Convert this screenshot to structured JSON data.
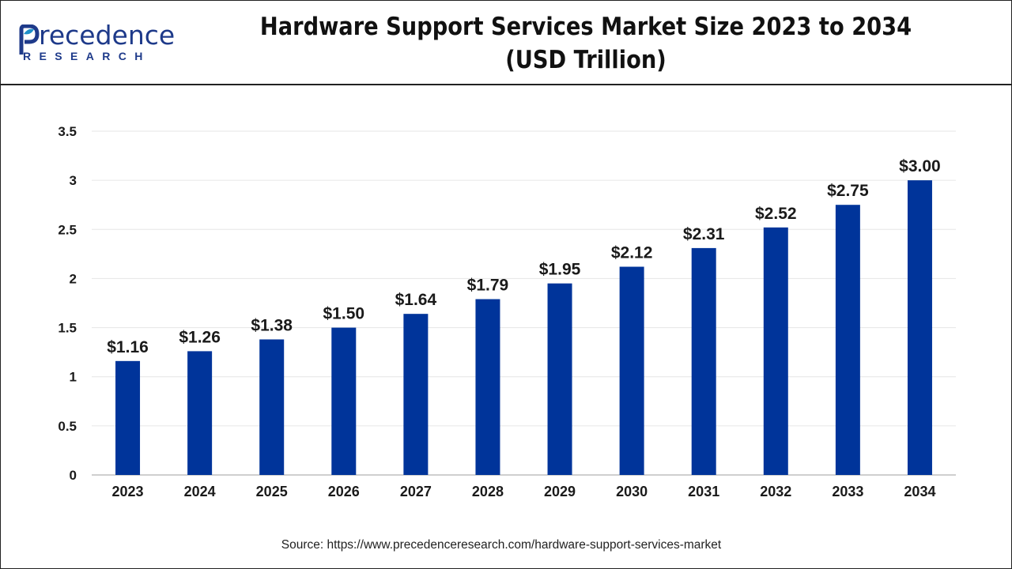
{
  "brand": {
    "name_main": "recedence",
    "name_sub": "RESEARCH"
  },
  "title": "Hardware Support Services Market Size 2023 to 2034",
  "subtitle": "(USD Trillion)",
  "source": "Source: https://www.precedenceresearch.com/hardware-support-services-market",
  "colors": {
    "bar": "#00349a",
    "grid": "#e6e6e6",
    "axis": "#bfbfbf",
    "brand": "#1e3a8a",
    "leaf": "#1e90c8"
  },
  "chart_data": {
    "type": "bar",
    "title": "Hardware Support Services Market Size 2023 to 2034",
    "subtitle": "(USD Trillion)",
    "xlabel": "",
    "ylabel": "",
    "categories": [
      "2023",
      "2024",
      "2025",
      "2026",
      "2027",
      "2028",
      "2029",
      "2030",
      "2031",
      "2032",
      "2033",
      "2034"
    ],
    "values": [
      1.16,
      1.26,
      1.38,
      1.5,
      1.64,
      1.79,
      1.95,
      2.12,
      2.31,
      2.52,
      2.75,
      3.0
    ],
    "data_labels": [
      "$1.16",
      "$1.26",
      "$1.38",
      "$1.50",
      "$1.64",
      "$1.79",
      "$1.95",
      "$2.12",
      "$2.31",
      "$2.52",
      "$2.75",
      "$3.00"
    ],
    "yticks": [
      "0",
      "0.5",
      "1",
      "1.5",
      "2",
      "2.5",
      "3",
      "3.5"
    ],
    "ylim": [
      0,
      3.5
    ],
    "grid": true,
    "legend": "none"
  }
}
